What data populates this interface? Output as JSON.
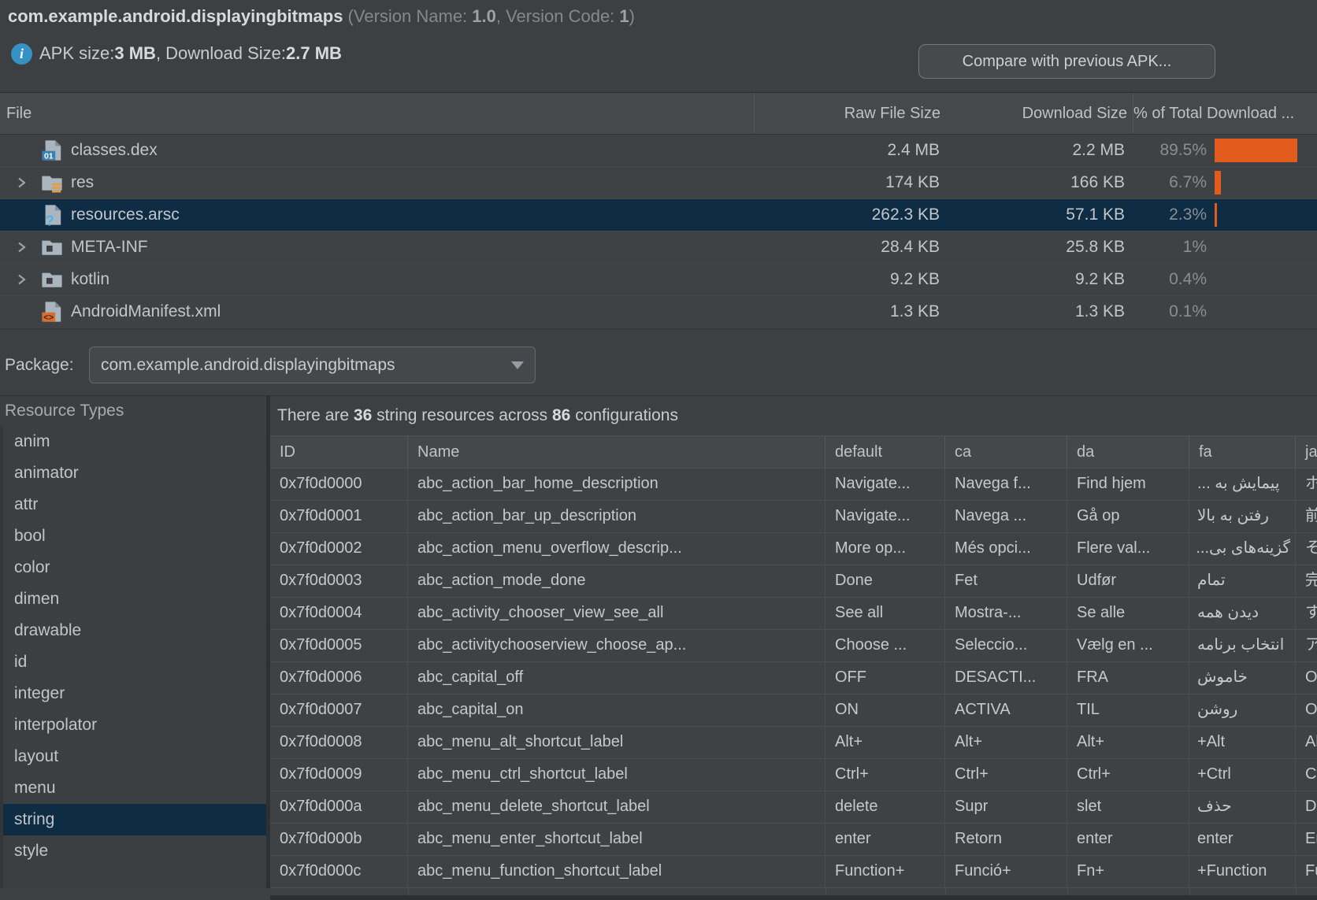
{
  "header": {
    "package_name": "com.example.android.displayingbitmaps",
    "version_prefix": " (Version Name: ",
    "version_name": "1.0",
    "version_mid": ", Version Code: ",
    "version_code": "1",
    "version_suffix": ")",
    "apk_size_label": "APK size: ",
    "apk_size": "3 MB",
    "download_size_label": ", Download Size: ",
    "download_size": "2.7 MB",
    "info_icon_glyph": "i",
    "compare_button_label": "Compare with previous APK..."
  },
  "file_table": {
    "columns": {
      "file": "File",
      "raw": "Raw File Size",
      "download": "Download Size",
      "percent": "% of Total Download ..."
    },
    "rows": [
      {
        "name": "classes.dex",
        "icon": "dex-file-icon",
        "expandable": false,
        "raw": "2.4 MB",
        "download": "2.2 MB",
        "percent": "89.5%",
        "percent_value": 89.5,
        "selected": false
      },
      {
        "name": "res",
        "icon": "res-folder-icon",
        "expandable": true,
        "raw": "174 KB",
        "download": "166 KB",
        "percent": "6.7%",
        "percent_value": 6.7,
        "selected": false
      },
      {
        "name": "resources.arsc",
        "icon": "arsc-file-icon",
        "expandable": false,
        "raw": "262.3 KB",
        "download": "57.1 KB",
        "percent": "2.3%",
        "percent_value": 2.3,
        "selected": true
      },
      {
        "name": "META-INF",
        "icon": "folder-icon",
        "expandable": true,
        "raw": "28.4 KB",
        "download": "25.8 KB",
        "percent": "1%",
        "percent_value": 1.0,
        "selected": false
      },
      {
        "name": "kotlin",
        "icon": "folder-icon",
        "expandable": true,
        "raw": "9.2 KB",
        "download": "9.2 KB",
        "percent": "0.4%",
        "percent_value": 0.4,
        "selected": false
      },
      {
        "name": "AndroidManifest.xml",
        "icon": "manifest-file-icon",
        "expandable": false,
        "raw": "1.3 KB",
        "download": "1.3 KB",
        "percent": "0.1%",
        "percent_value": 0.1,
        "selected": false
      }
    ],
    "bar_color": "#E35C1E",
    "selection_color": "#0E2C44"
  },
  "package_selector": {
    "label": "Package:",
    "value": "com.example.android.displayingbitmaps"
  },
  "resource_types": {
    "title": "Resource Types",
    "items": [
      "anim",
      "animator",
      "attr",
      "bool",
      "color",
      "dimen",
      "drawable",
      "id",
      "integer",
      "interpolator",
      "layout",
      "menu",
      "string",
      "style"
    ],
    "selected": "string"
  },
  "string_table": {
    "summary_prefix": "There are ",
    "summary_count": "36",
    "summary_mid": " string resources across ",
    "summary_configs": "86",
    "summary_suffix": " configurations",
    "columns": [
      "ID",
      "Name",
      "default",
      "ca",
      "da",
      "fa",
      "ja"
    ],
    "rows": [
      {
        "id": "0x7f0d0000",
        "name": "abc_action_bar_home_description",
        "default": "Navigate...",
        "ca": "Navega f...",
        "da": "Find hjem",
        "fa": "پیمایش به ...",
        "ja": "ホ"
      },
      {
        "id": "0x7f0d0001",
        "name": "abc_action_bar_up_description",
        "default": "Navigate...",
        "ca": "Navega ...",
        "da": "Gå op",
        "fa": "رفتن به بالا",
        "ja": "前"
      },
      {
        "id": "0x7f0d0002",
        "name": "abc_action_menu_overflow_descrip...",
        "default": "More op...",
        "ca": "Més opci...",
        "da": "Flere val...",
        "fa": "گزینه‌های بی...",
        "ja": "そ"
      },
      {
        "id": "0x7f0d0003",
        "name": "abc_action_mode_done",
        "default": "Done",
        "ca": "Fet",
        "da": "Udfør",
        "fa": "تمام",
        "ja": "完"
      },
      {
        "id": "0x7f0d0004",
        "name": "abc_activity_chooser_view_see_all",
        "default": "See all",
        "ca": "Mostra-...",
        "da": "Se alle",
        "fa": "دیدن همه",
        "ja": "す"
      },
      {
        "id": "0x7f0d0005",
        "name": "abc_activitychooserview_choose_ap...",
        "default": "Choose ...",
        "ca": "Seleccio...",
        "da": "Vælg en ...",
        "fa": "انتخاب برنامه",
        "ja": "ア"
      },
      {
        "id": "0x7f0d0006",
        "name": "abc_capital_off",
        "default": "OFF",
        "ca": "DESACTI...",
        "da": "FRA",
        "fa": "خاموش",
        "ja": "O"
      },
      {
        "id": "0x7f0d0007",
        "name": "abc_capital_on",
        "default": "ON",
        "ca": "ACTIVA",
        "da": "TIL",
        "fa": "روشن",
        "ja": "O"
      },
      {
        "id": "0x7f0d0008",
        "name": "abc_menu_alt_shortcut_label",
        "default": "Alt+",
        "ca": "Alt+",
        "da": "Alt+",
        "fa": "Alt+",
        "ja": "Al"
      },
      {
        "id": "0x7f0d0009",
        "name": "abc_menu_ctrl_shortcut_label",
        "default": "Ctrl+",
        "ca": "Ctrl+",
        "da": "Ctrl+",
        "fa": "Ctrl+",
        "ja": "Ct"
      },
      {
        "id": "0x7f0d000a",
        "name": "abc_menu_delete_shortcut_label",
        "default": "delete",
        "ca": "Supr",
        "da": "slet",
        "fa": "حذف",
        "ja": "De"
      },
      {
        "id": "0x7f0d000b",
        "name": "abc_menu_enter_shortcut_label",
        "default": "enter",
        "ca": "Retorn",
        "da": "enter",
        "fa": "enter",
        "ja": "En"
      },
      {
        "id": "0x7f0d000c",
        "name": "abc_menu_function_shortcut_label",
        "default": "Function+",
        "ca": "Funció+",
        "da": "Fn+",
        "fa": "Function+",
        "ja": "Fu"
      }
    ]
  }
}
